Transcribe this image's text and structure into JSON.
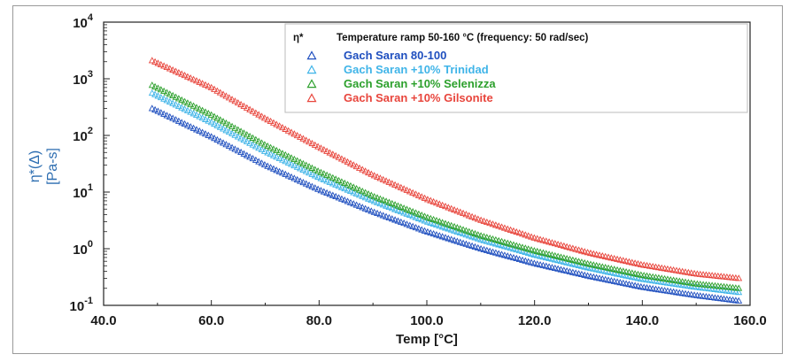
{
  "chart_data": {
    "type": "scatter",
    "legend_symbol": "η*",
    "legend_title": "Temperature ramp  50-160 °C  (frequency:  50 rad/sec)",
    "xlabel": "Temp [°C]",
    "ylabel_symbol": "η*(Δ)",
    "ylabel_unit": "[Pa-s]",
    "x_ticks": [
      "40.0",
      "60.0",
      "80.0",
      "100.0",
      "120.0",
      "140.0",
      "160.0"
    ],
    "y_ticks": [
      {
        "base": "10",
        "exp": "-1"
      },
      {
        "base": "10",
        "exp": "0"
      },
      {
        "base": "10",
        "exp": "1"
      },
      {
        "base": "10",
        "exp": "2"
      },
      {
        "base": "10",
        "exp": "3"
      },
      {
        "base": "10",
        "exp": "4"
      }
    ],
    "xlim": [
      40,
      160
    ],
    "ylim": [
      0.1,
      10000
    ],
    "y_scale": "log",
    "legend_placement": "top-right",
    "marker": "open triangle",
    "series": [
      {
        "name": "Gach Saran 80-100",
        "color": "#1f4fbf",
        "x": [
          49,
          60,
          70,
          80,
          90,
          100,
          110,
          120,
          130,
          140,
          150,
          158
        ],
        "y": [
          300,
          95,
          30,
          11,
          4.5,
          2.0,
          1.0,
          0.55,
          0.33,
          0.21,
          0.15,
          0.12
        ]
      },
      {
        "name": "Gach Saran +10% Trinidad",
        "color": "#3fb4e8",
        "x": [
          49,
          60,
          70,
          80,
          90,
          100,
          110,
          120,
          130,
          140,
          150,
          158
        ],
        "y": [
          560,
          170,
          52,
          18,
          7.0,
          3.0,
          1.45,
          0.78,
          0.46,
          0.29,
          0.21,
          0.17
        ]
      },
      {
        "name": "Gach Saran +10% Selenizza",
        "color": "#2ca02c",
        "x": [
          49,
          60,
          70,
          80,
          90,
          100,
          110,
          120,
          130,
          140,
          150,
          158
        ],
        "y": [
          770,
          230,
          68,
          23,
          8.5,
          3.6,
          1.7,
          0.92,
          0.54,
          0.34,
          0.24,
          0.2
        ]
      },
      {
        "name": "Gach Saran +10% Gilsonite",
        "color": "#e8453c",
        "x": [
          49,
          60,
          70,
          80,
          90,
          100,
          110,
          120,
          130,
          140,
          150,
          158
        ],
        "y": [
          2100,
          700,
          200,
          62,
          20,
          7.5,
          3.2,
          1.55,
          0.85,
          0.52,
          0.36,
          0.3
        ]
      }
    ]
  }
}
